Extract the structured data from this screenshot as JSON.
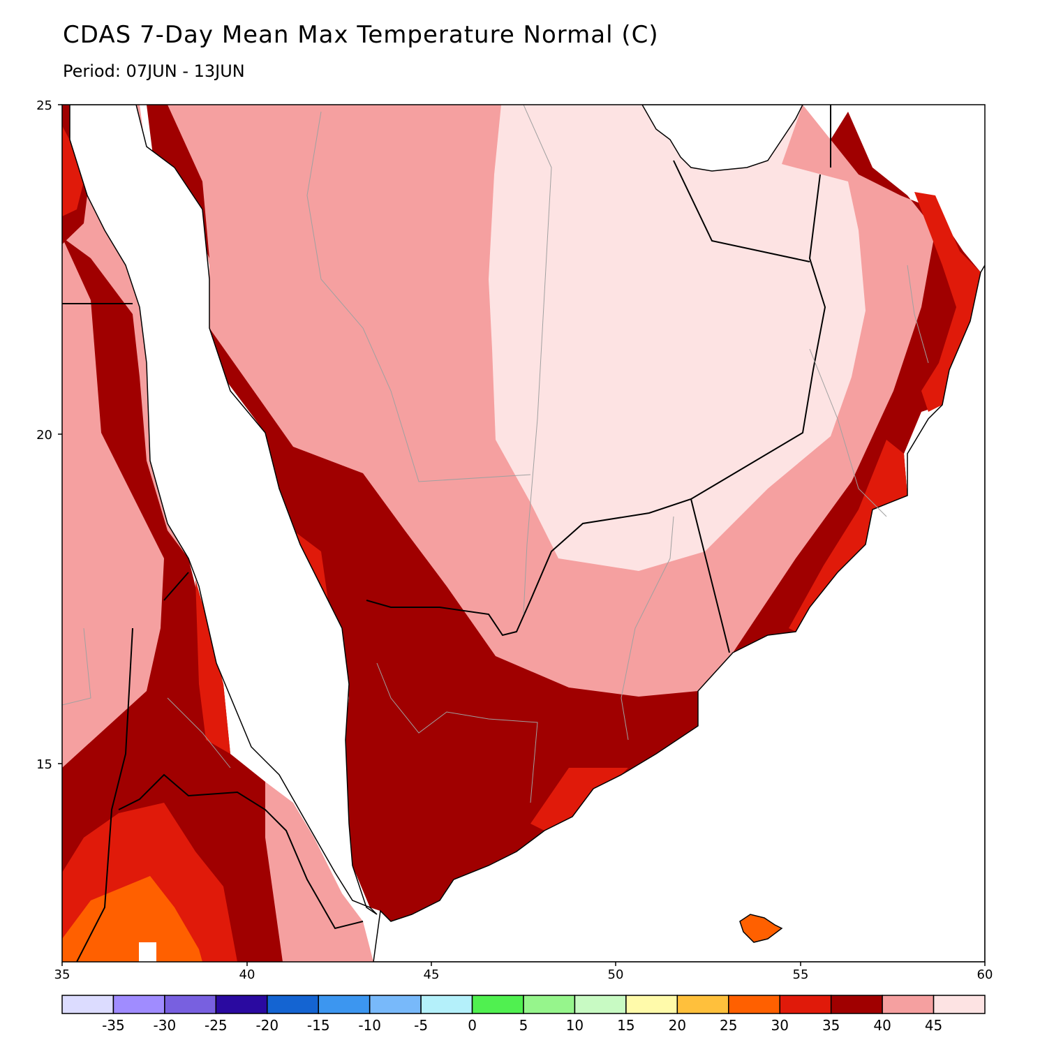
{
  "header": {
    "title": "CDAS 7-Day Mean Max Temperature Normal (C)",
    "subtitle": "Period: 07JUN - 13JUN"
  },
  "map": {
    "projection": "lat-lon",
    "lon_range": [
      35,
      60
    ],
    "lat_range": [
      12,
      25
    ],
    "lon_ticks": [
      "35",
      "40",
      "45",
      "50",
      "55",
      "60"
    ],
    "lat_ticks": [
      "25",
      "20",
      "15"
    ],
    "region": "Arabian Peninsula / Horn of Africa",
    "fill_colors": {
      "sea": "#ffffff",
      "band_30_35": "#e01a0a",
      "band_35_40": "#a00000",
      "band_40_45": "#f5a0a0",
      "band_above_45": "#fde3e3",
      "band_25_30": "#ff6000"
    }
  },
  "colorbar": {
    "colors": [
      "#dcdcff",
      "#a08cff",
      "#7860e0",
      "#2a0aa0",
      "#1464d2",
      "#3c96f0",
      "#78b9fa",
      "#b4f0fa",
      "#50f050",
      "#96f58c",
      "#c8fac3",
      "#fffaaa",
      "#ffc03c",
      "#ff6000",
      "#e01a0a",
      "#a00000",
      "#f5a0a0",
      "#fde3e3"
    ],
    "labels": [
      "-35",
      "-30",
      "-25",
      "-20",
      "-15",
      "-10",
      "-5",
      "0",
      "5",
      "10",
      "15",
      "20",
      "25",
      "30",
      "35",
      "40",
      "45"
    ]
  }
}
